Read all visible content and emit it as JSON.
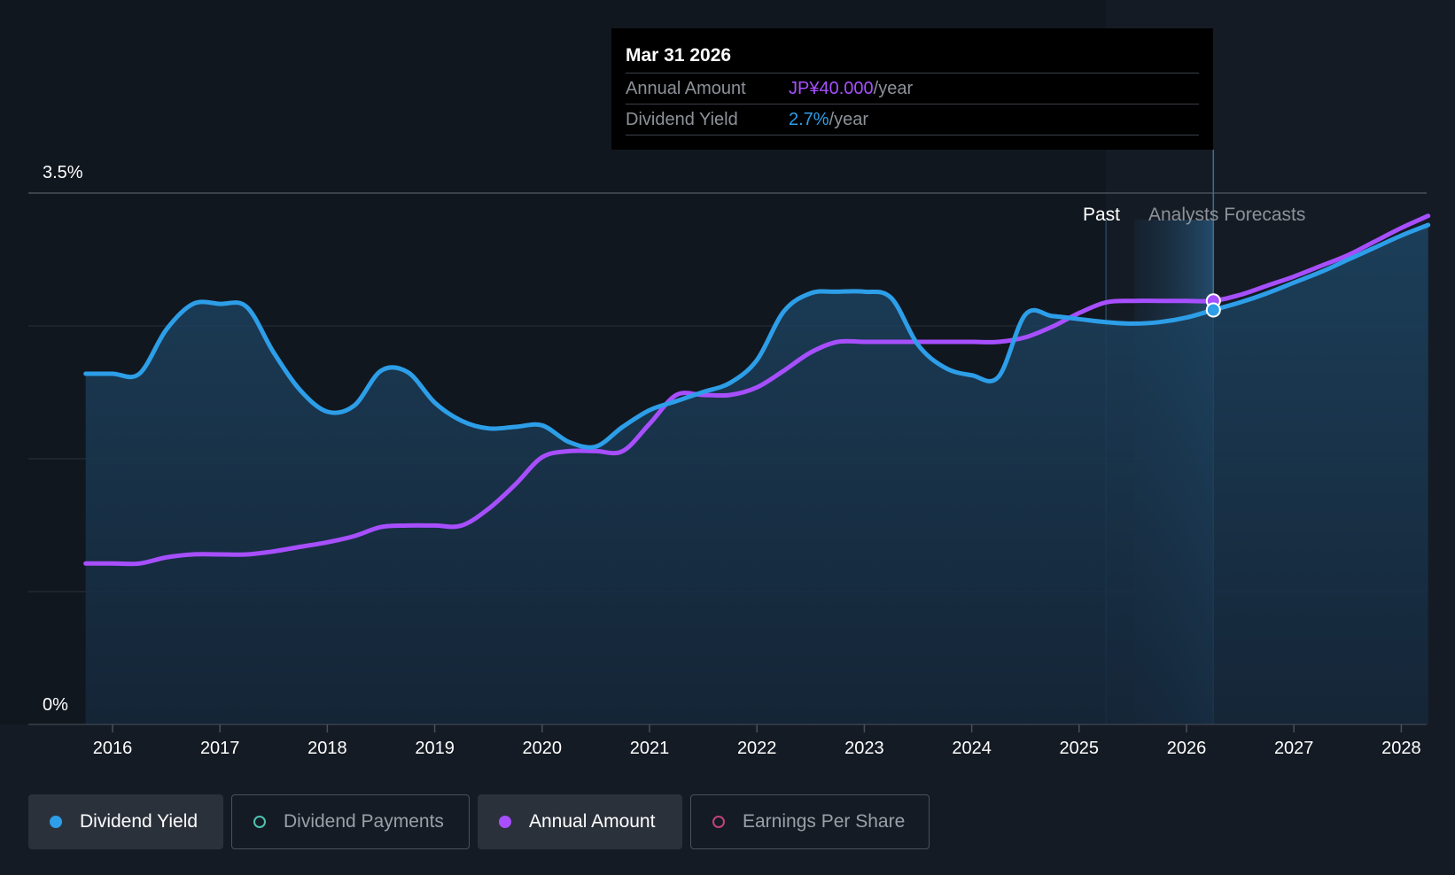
{
  "tooltip": {
    "date": "Mar 31 2026",
    "rows": [
      {
        "label": "Annual Amount",
        "value": "JP¥40.000",
        "unit": "/year"
      },
      {
        "label": "Dividend Yield",
        "value": "2.7%",
        "unit": "/year"
      }
    ]
  },
  "sections": {
    "past": "Past",
    "forecast": "Analysts Forecasts"
  },
  "legend": [
    {
      "label": "Dividend Yield",
      "color": "#2d9ee8",
      "active": true,
      "filled": true
    },
    {
      "label": "Dividend Payments",
      "color": "#4fc2b0",
      "active": false,
      "filled": false
    },
    {
      "label": "Annual Amount",
      "color": "#a74fff",
      "active": true,
      "filled": true
    },
    {
      "label": "Earnings Per Share",
      "color": "#c0427a",
      "active": false,
      "filled": false
    }
  ],
  "colors": {
    "yield": "#2d9ee8",
    "amount": "#a74fff",
    "background": "#151b24"
  },
  "chart_data": {
    "type": "line",
    "ylim": [
      0,
      3.5
    ],
    "y_tick_labels": [
      "3.5%",
      "0%"
    ],
    "x_tick_labels": [
      "2016",
      "2017",
      "2018",
      "2019",
      "2020",
      "2021",
      "2022",
      "2023",
      "2024",
      "2025",
      "2026",
      "2027",
      "2028"
    ],
    "xlim": [
      2015.74,
      2028.25
    ],
    "past_end": 2025.25,
    "tooltip_x": 2026.25,
    "series": [
      {
        "name": "Dividend Yield",
        "unit": "%",
        "x": [
          2015.75,
          2016.0,
          2016.25,
          2016.5,
          2016.75,
          2017.0,
          2017.25,
          2017.5,
          2017.75,
          2018.0,
          2018.25,
          2018.5,
          2018.75,
          2019.0,
          2019.25,
          2019.5,
          2019.75,
          2020.0,
          2020.25,
          2020.5,
          2020.75,
          2021.0,
          2021.25,
          2021.5,
          2021.75,
          2022.0,
          2022.25,
          2022.5,
          2022.75,
          2023.0,
          2023.25,
          2023.5,
          2023.75,
          2024.0,
          2024.25,
          2024.5,
          2024.75,
          2025.0,
          2025.25,
          2025.5,
          2025.75,
          2026.0,
          2026.25,
          2026.5,
          2026.75,
          2027.0,
          2027.25,
          2027.5,
          2027.75,
          2028.0,
          2028.25
        ],
        "values": [
          2.31,
          2.31,
          2.31,
          2.6,
          2.77,
          2.77,
          2.75,
          2.45,
          2.2,
          2.06,
          2.1,
          2.33,
          2.32,
          2.12,
          2.0,
          1.95,
          1.96,
          1.97,
          1.86,
          1.83,
          1.96,
          2.07,
          2.13,
          2.19,
          2.25,
          2.4,
          2.72,
          2.84,
          2.85,
          2.85,
          2.81,
          2.5,
          2.35,
          2.3,
          2.29,
          2.7,
          2.69,
          2.67,
          2.65,
          2.64,
          2.65,
          2.68,
          2.73,
          2.78,
          2.84,
          2.91,
          2.98,
          3.06,
          3.14,
          3.22,
          3.29
        ]
      },
      {
        "name": "Annual Amount",
        "x": [
          2015.75,
          2016.0,
          2016.25,
          2016.5,
          2016.75,
          2017.0,
          2017.25,
          2017.5,
          2017.75,
          2018.0,
          2018.25,
          2018.5,
          2018.75,
          2019.0,
          2019.25,
          2019.5,
          2019.75,
          2020.0,
          2020.25,
          2020.5,
          2020.75,
          2021.0,
          2021.25,
          2021.5,
          2021.75,
          2022.0,
          2022.25,
          2022.5,
          2022.75,
          2023.0,
          2023.25,
          2023.5,
          2023.75,
          2024.0,
          2024.25,
          2024.5,
          2024.75,
          2025.0,
          2025.25,
          2025.5,
          2025.75,
          2026.0,
          2026.25,
          2026.5,
          2026.75,
          2027.0,
          2027.25,
          2027.5,
          2027.75,
          2028.0,
          2028.25
        ],
        "values": [
          1.06,
          1.06,
          1.06,
          1.1,
          1.12,
          1.12,
          1.12,
          1.14,
          1.17,
          1.2,
          1.24,
          1.3,
          1.31,
          1.31,
          1.31,
          1.42,
          1.58,
          1.76,
          1.8,
          1.8,
          1.8,
          1.98,
          2.17,
          2.17,
          2.17,
          2.22,
          2.33,
          2.45,
          2.52,
          2.52,
          2.52,
          2.52,
          2.52,
          2.52,
          2.52,
          2.55,
          2.62,
          2.71,
          2.78,
          2.79,
          2.79,
          2.79,
          2.79,
          2.83,
          2.89,
          2.95,
          3.02,
          3.09,
          3.18,
          3.27,
          3.35
        ]
      }
    ]
  }
}
